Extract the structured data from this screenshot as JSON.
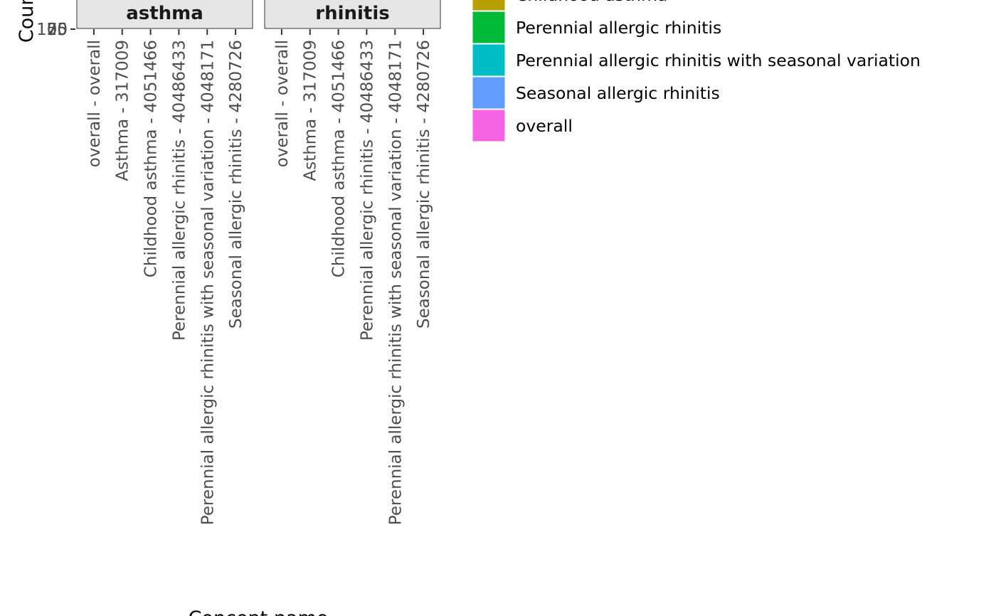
{
  "chart_data": {
    "type": "bar",
    "xlabel": "Concept name",
    "ylabel": "Count",
    "y_tick_labels": [
      "25",
      "50",
      "75",
      "100"
    ],
    "facets": [
      "asthma",
      "rhinitis"
    ],
    "categories": [
      "overall - overall",
      "Asthma - 317009",
      "Childhood asthma - 4051466",
      "Perennial allergic rhinitis - 40486433",
      "Perennial allergic rhinitis with seasonal variation - 4048171",
      "Seasonal allergic rhinitis - 4280726"
    ],
    "legend": [
      {
        "label": "Childhood asthma",
        "color": "#B79F00"
      },
      {
        "label": "Perennial allergic rhinitis",
        "color": "#00BA38"
      },
      {
        "label": "Perennial allergic rhinitis with seasonal variation",
        "color": "#00BFC4"
      },
      {
        "label": "Seasonal allergic rhinitis",
        "color": "#619CFF"
      },
      {
        "label": "overall",
        "color": "#F564E3"
      }
    ],
    "legend_position": "right",
    "grid": false
  }
}
